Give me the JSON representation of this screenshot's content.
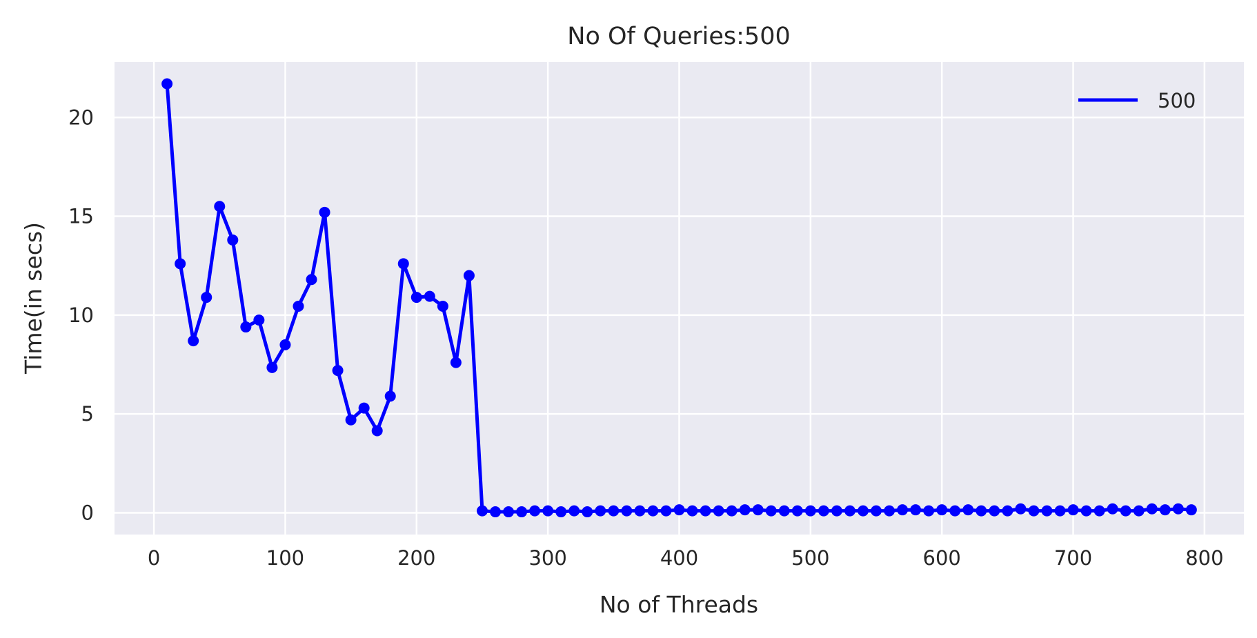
{
  "chart_data": {
    "type": "line",
    "title": "No Of Queries:500",
    "xlabel": "No of Threads",
    "ylabel": "Time(in secs)",
    "xlim": [
      -30,
      830
    ],
    "ylim": [
      -1.1,
      22.8
    ],
    "xticks": [
      0,
      100,
      200,
      300,
      400,
      500,
      600,
      700,
      800
    ],
    "xtick_labels": [
      "0",
      "100",
      "200",
      "300",
      "400",
      "500",
      "600",
      "700",
      "800"
    ],
    "yticks": [
      0,
      5,
      10,
      15,
      20
    ],
    "ytick_labels": [
      "0",
      "5",
      "10",
      "15",
      "20"
    ],
    "grid": true,
    "legend_position": "top-right",
    "colors": {
      "background": "#eaeaf2",
      "grid": "#ffffff",
      "line": "#0000ff"
    },
    "series": [
      {
        "name": "500",
        "x": [
          10,
          20,
          30,
          40,
          50,
          60,
          70,
          80,
          90,
          100,
          110,
          120,
          130,
          140,
          150,
          160,
          170,
          180,
          190,
          200,
          210,
          220,
          230,
          240,
          250,
          260,
          270,
          280,
          290,
          300,
          310,
          320,
          330,
          340,
          350,
          360,
          370,
          380,
          390,
          400,
          410,
          420,
          430,
          440,
          450,
          460,
          470,
          480,
          490,
          500,
          510,
          520,
          530,
          540,
          550,
          560,
          570,
          580,
          590,
          600,
          610,
          620,
          630,
          640,
          650,
          660,
          670,
          680,
          690,
          700,
          710,
          720,
          730,
          740,
          750,
          760,
          770,
          780,
          790
        ],
        "y": [
          21.7,
          12.6,
          8.7,
          10.9,
          15.5,
          13.8,
          9.4,
          9.75,
          7.35,
          8.5,
          10.45,
          11.8,
          15.2,
          7.2,
          4.7,
          5.3,
          4.15,
          5.9,
          12.6,
          10.9,
          10.95,
          10.45,
          7.6,
          12.0,
          0.1,
          0.05,
          0.05,
          0.05,
          0.1,
          0.1,
          0.05,
          0.1,
          0.05,
          0.1,
          0.1,
          0.1,
          0.1,
          0.1,
          0.1,
          0.15,
          0.1,
          0.1,
          0.1,
          0.1,
          0.15,
          0.15,
          0.1,
          0.1,
          0.1,
          0.1,
          0.1,
          0.1,
          0.1,
          0.1,
          0.1,
          0.1,
          0.15,
          0.15,
          0.1,
          0.15,
          0.1,
          0.15,
          0.1,
          0.1,
          0.1,
          0.2,
          0.1,
          0.1,
          0.1,
          0.15,
          0.1,
          0.1,
          0.2,
          0.1,
          0.1,
          0.2,
          0.15,
          0.2,
          0.15
        ]
      }
    ]
  }
}
